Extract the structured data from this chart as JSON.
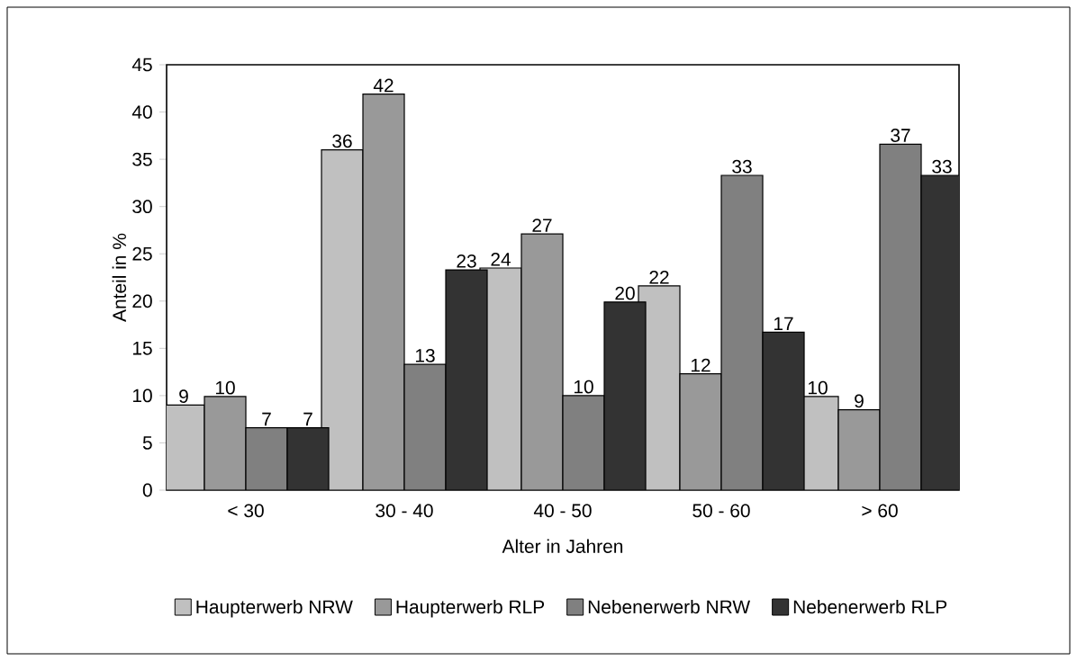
{
  "chart_data": {
    "type": "bar",
    "xlabel": "Alter in Jahren",
    "ylabel": "Anteil in %",
    "categories": [
      "< 30",
      "30 - 40",
      "40 - 50",
      "50 - 60",
      "> 60"
    ],
    "series": [
      {
        "name": "Haupterwerb NRW",
        "color": "#c0c0c0",
        "values": [
          9,
          36,
          23.5,
          21.6,
          9.9
        ],
        "value_labels": [
          "9",
          "36",
          "24",
          "22",
          "10"
        ]
      },
      {
        "name": "Haupterwerb RLP",
        "color": "#999999",
        "values": [
          9.9,
          41.9,
          27.1,
          12.3,
          8.5
        ],
        "value_labels": [
          "10",
          "42",
          "27",
          "12",
          "9"
        ]
      },
      {
        "name": "Nebenerwerb NRW",
        "color": "#808080",
        "values": [
          6.6,
          13.3,
          10,
          33.3,
          36.6
        ],
        "value_labels": [
          "7",
          "13",
          "10",
          "33",
          "37"
        ]
      },
      {
        "name": "Nebenerwerb RLP",
        "color": "#333333",
        "values": [
          6.6,
          23.3,
          19.9,
          16.7,
          33.3
        ],
        "value_labels": [
          "7",
          "23",
          "20",
          "17",
          "33"
        ]
      }
    ],
    "ylim": [
      0,
      45
    ],
    "yticks": [
      0,
      5,
      10,
      15,
      20,
      25,
      30,
      35,
      40,
      45
    ],
    "grid": false,
    "legend": "bottom"
  }
}
